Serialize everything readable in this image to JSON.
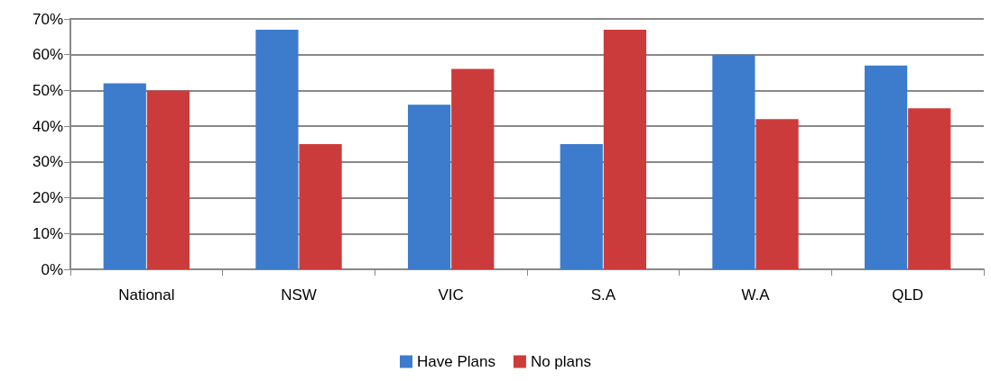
{
  "chart_data": {
    "type": "bar",
    "categories": [
      "National",
      "NSW",
      "VIC",
      "S.A",
      "W.A",
      "QLD"
    ],
    "series": [
      {
        "name": "Have Plans",
        "color": "#3d7ccc",
        "values": [
          52,
          67,
          46,
          35,
          60,
          57
        ]
      },
      {
        "name": "No plans",
        "color": "#cc3b3b",
        "values": [
          50,
          35,
          56,
          67,
          42,
          45
        ]
      }
    ],
    "ylim": [
      0,
      70
    ],
    "yticks": [
      {
        "value": 0,
        "label": "0%"
      },
      {
        "value": 10,
        "label": "10%"
      },
      {
        "value": 20,
        "label": "20%"
      },
      {
        "value": 30,
        "label": "30%"
      },
      {
        "value": 40,
        "label": "40%"
      },
      {
        "value": 50,
        "label": "50%"
      },
      {
        "value": 60,
        "label": "60%"
      },
      {
        "value": 70,
        "label": "70%"
      }
    ],
    "grid": "y",
    "legend": "bottom"
  }
}
